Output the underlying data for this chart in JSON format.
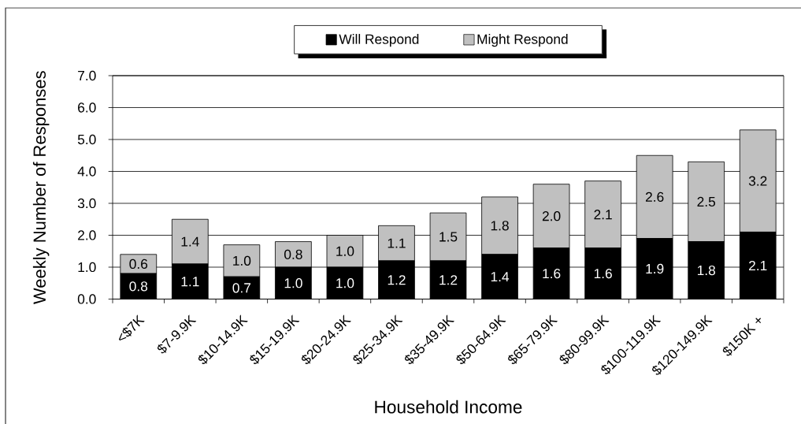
{
  "chart_data": {
    "type": "bar",
    "stacked": true,
    "xlabel": "Household Income",
    "ylabel": "Weekly Number of Responses",
    "categories": [
      "<$7K",
      "$7-9.9K",
      "$10-14.9K",
      "$15-19.9K",
      "$20-24.9K",
      "$25-34.9K",
      "$35-49.9K",
      "$50-64.9K",
      "$65-79.9K",
      "$80-99.9K",
      "$100-119.9K",
      "$120-149.9K",
      "$150K +"
    ],
    "series": [
      {
        "name": "Will Respond",
        "color": "#000000",
        "values": [
          0.8,
          1.1,
          0.7,
          1.0,
          1.0,
          1.2,
          1.2,
          1.4,
          1.6,
          1.6,
          1.9,
          1.8,
          2.1
        ],
        "value_labels": [
          "0.8",
          "1.1",
          "0.7",
          "1.0",
          "1.0",
          "1.2",
          "1.2",
          "1.4",
          "1.6",
          "1.6",
          "1.9",
          "1.8",
          "2.1"
        ]
      },
      {
        "name": "Might Respond",
        "color": "#c0c0c0",
        "values": [
          0.6,
          1.4,
          1.0,
          0.8,
          1.0,
          1.1,
          1.5,
          1.8,
          2.0,
          2.1,
          2.6,
          2.5,
          3.2
        ],
        "value_labels": [
          "0.6",
          "1.4",
          "1.0",
          "0.8",
          "1.0",
          "1.1",
          "1.5",
          "1.8",
          "2.0",
          "2.1",
          "2.6",
          "2.5",
          "3.2"
        ]
      }
    ],
    "ylim": [
      0,
      7
    ],
    "yticks": [
      {
        "value": 0,
        "label": "0.0"
      },
      {
        "value": 1,
        "label": "1.0"
      },
      {
        "value": 2,
        "label": "2.0"
      },
      {
        "value": 3,
        "label": "3.0"
      },
      {
        "value": 4,
        "label": "4.0"
      },
      {
        "value": 5,
        "label": "5.0"
      },
      {
        "value": 6,
        "label": "6.0"
      },
      {
        "value": 7,
        "label": "7.0"
      }
    ],
    "grid": "y",
    "legend": "top"
  }
}
